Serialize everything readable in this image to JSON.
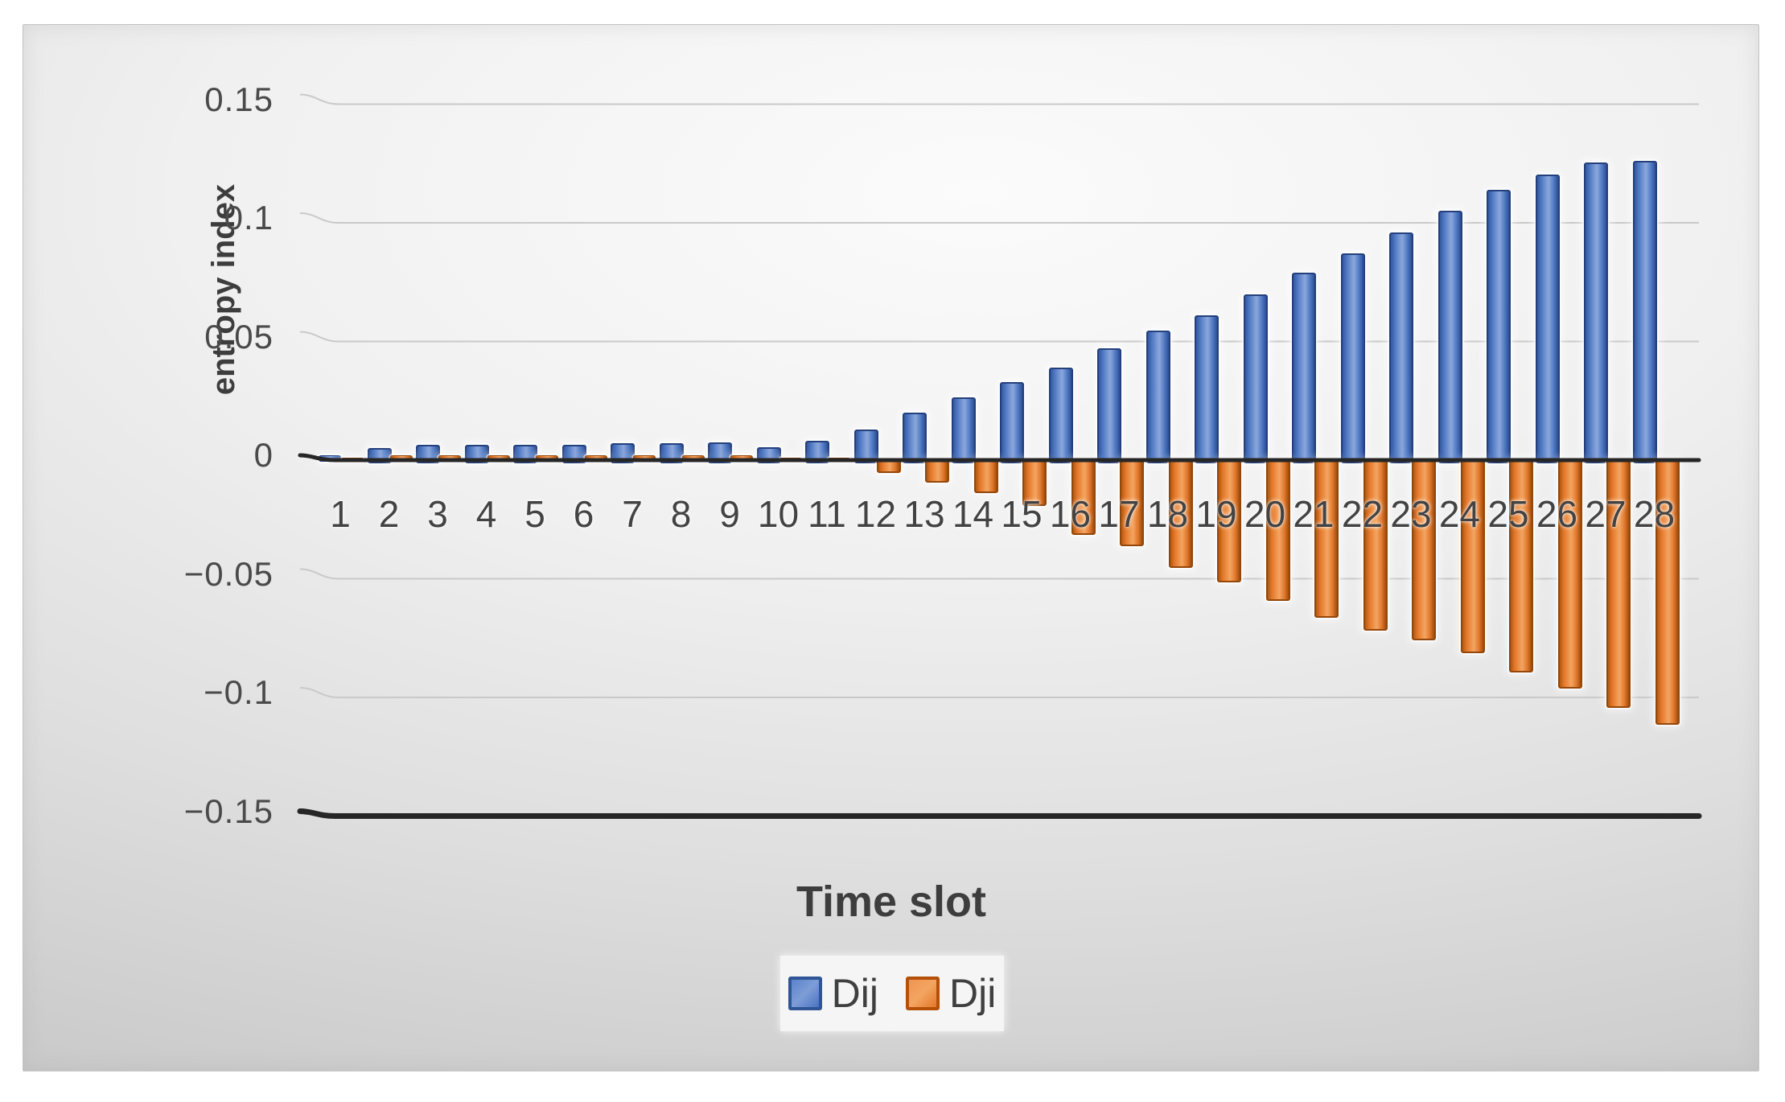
{
  "chart_data": {
    "type": "bar",
    "title": "",
    "xlabel": "Time slot",
    "ylabel": "entropy index",
    "categories": [
      "1",
      "2",
      "3",
      "4",
      "5",
      "6",
      "7",
      "8",
      "9",
      "10",
      "11",
      "12",
      "13",
      "14",
      "15",
      "16",
      "17",
      "18",
      "19",
      "20",
      "21",
      "22",
      "23",
      "24",
      "25",
      "26",
      "27",
      "28"
    ],
    "series": [
      {
        "name": "Dij",
        "color": "#4472c4",
        "values": [
          0.002,
          0.005,
          0.0065,
          0.0065,
          0.0065,
          0.0065,
          0.007,
          0.007,
          0.0075,
          0.0055,
          0.008,
          0.013,
          0.02,
          0.0265,
          0.033,
          0.039,
          0.047,
          0.0545,
          0.061,
          0.07,
          0.079,
          0.087,
          0.096,
          0.105,
          0.114,
          0.1205,
          0.1255,
          0.126
        ]
      },
      {
        "name": "Dji",
        "color": "#ed7d31",
        "values": [
          0.001,
          0.002,
          0.002,
          0.002,
          0.002,
          0.002,
          0.002,
          0.002,
          0.002,
          0.001,
          0.001,
          -0.004,
          -0.008,
          -0.0125,
          -0.018,
          -0.03,
          -0.035,
          -0.044,
          -0.05,
          -0.058,
          -0.065,
          -0.0705,
          -0.0745,
          -0.08,
          -0.088,
          -0.095,
          -0.103,
          -0.11
        ]
      }
    ],
    "ylim": [
      -0.15,
      0.15
    ],
    "yticks": [
      0.15,
      0.1,
      0.05,
      0,
      -0.05,
      -0.1,
      -0.15
    ],
    "ytick_labels": [
      "0.15",
      "0.1",
      "0.05",
      "0",
      "−0.05",
      "−0.1",
      "−0.15"
    ],
    "grid": true,
    "legend_position": "bottom"
  },
  "colors": {
    "grid_line": "#c9c9c9",
    "axis_line": "#262626",
    "panel_edge": "#c2c2c2",
    "text": "#3f3f3f"
  }
}
